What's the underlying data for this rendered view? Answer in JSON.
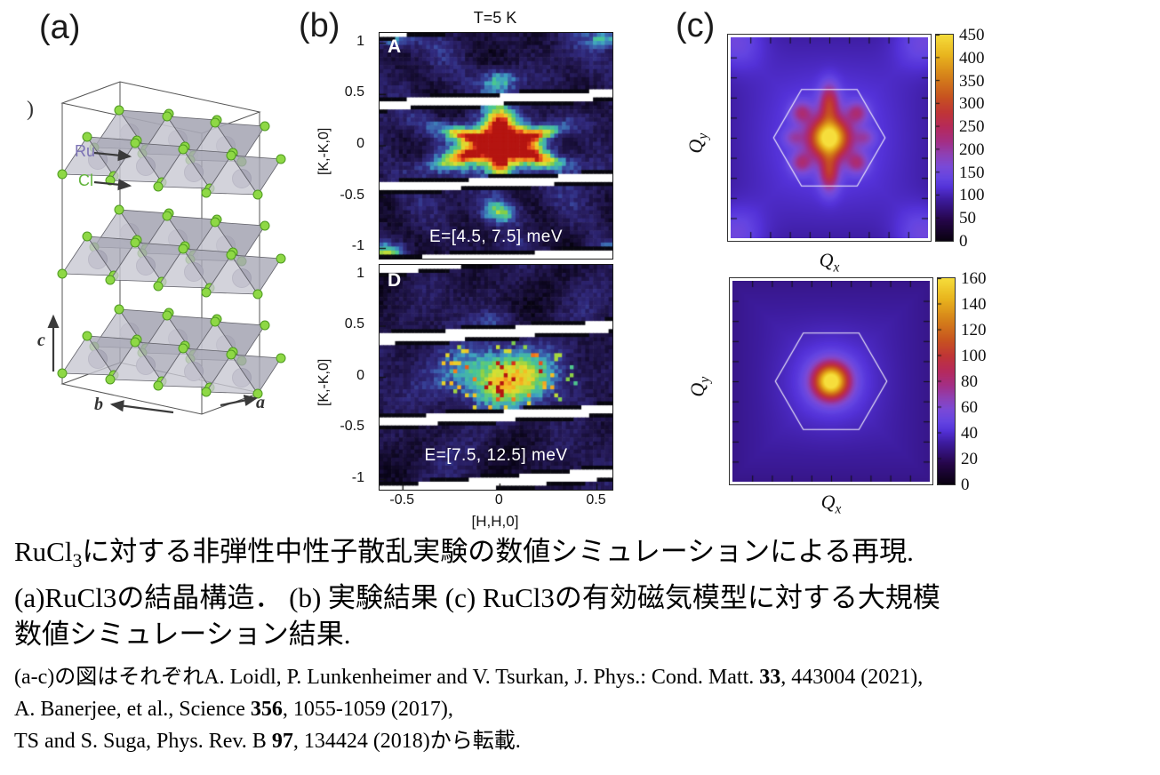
{
  "figure": {
    "panel_a": {
      "label": "(a)",
      "stray_paren": ")",
      "legend": {
        "ru": "Ru",
        "cl": "Cl"
      },
      "axes": {
        "a": "a",
        "b": "b",
        "c": "c"
      },
      "colors": {
        "ru_text": "#7b72b4",
        "cl_text": "#62b43c",
        "cl_sphere": "#8ed845",
        "ru_sphere": "#b6b0c4"
      }
    },
    "panel_b": {
      "label": "(b)",
      "title": "T=5 K",
      "ylabel": "[K,-K,0]",
      "xlabel": "[H,H,0]",
      "tag_top": "A",
      "tag_bottom": "D",
      "annotation_top": "E=[4.5, 7.5] meV",
      "annotation_bottom": "E=[7.5, 12.5] meV"
    },
    "panel_c": {
      "label": "(c)",
      "qx_segments": [
        {
          "text": "Q",
          "i": true
        },
        {
          "text": "x",
          "i": true,
          "sub": true
        }
      ],
      "qy_segments": [
        {
          "text": "Q",
          "i": true
        },
        {
          "text": "y",
          "i": true,
          "sub": true
        }
      ]
    }
  },
  "caption": {
    "lines": [
      {
        "segments": [
          {
            "text": "RuCl"
          },
          {
            "text": "3",
            "sub": true
          },
          {
            "text": "に対する非弾性中性子散乱実験の数値シミュレーションによる再現."
          }
        ]
      },
      {
        "segments": [
          {
            "text": "(a)RuCl3の結晶構造．  (b) 実験結果 (c) RuCl3の有効磁気模型に対する大規模"
          }
        ]
      },
      {
        "segments": [
          {
            "text": "数値シミュレーション結果."
          }
        ]
      },
      {
        "segments": [
          {
            "text": "(a-c)の図はそれぞれA. Loidl, P. Lunkenheimer and V. Tsurkan, J. Phys.: Cond. Matt. "
          },
          {
            "text": "33",
            "b": true
          },
          {
            "text": ", 443004 (2021),"
          }
        ]
      },
      {
        "segments": [
          {
            "text": "A. Banerjee, et al., Science "
          },
          {
            "text": "356",
            "b": true
          },
          {
            "text": ", 1055-1059 (2017),"
          }
        ]
      },
      {
        "segments": [
          {
            "text": "TS and S. Suga, Phys. Rev. B "
          },
          {
            "text": "97",
            "b": true
          },
          {
            "text": ", 134424 (2018)から転載."
          }
        ]
      }
    ]
  },
  "palettes": {
    "jet": [
      [
        0.0,
        "#070312"
      ],
      [
        0.1,
        "#160d33"
      ],
      [
        0.2,
        "#251a57"
      ],
      [
        0.3,
        "#312a7d"
      ],
      [
        0.38,
        "#3a4fa5"
      ],
      [
        0.46,
        "#3f9fc4"
      ],
      [
        0.54,
        "#49c795"
      ],
      [
        0.62,
        "#83cf4a"
      ],
      [
        0.7,
        "#d8e234"
      ],
      [
        0.78,
        "#f6bc24"
      ],
      [
        0.86,
        "#f2801d"
      ],
      [
        0.92,
        "#e0391f"
      ],
      [
        1.0,
        "#b51410"
      ]
    ],
    "pm3d": [
      [
        0.0,
        "#0a0210"
      ],
      [
        0.1,
        "#26064a"
      ],
      [
        0.2,
        "#3d1c9e"
      ],
      [
        0.26,
        "#5432d8"
      ],
      [
        0.3,
        "#6344e2"
      ],
      [
        0.36,
        "#7a4ad8"
      ],
      [
        0.42,
        "#8f41b4"
      ],
      [
        0.48,
        "#a42f86"
      ],
      [
        0.55,
        "#b62a5c"
      ],
      [
        0.62,
        "#c03538"
      ],
      [
        0.7,
        "#c85420"
      ],
      [
        0.8,
        "#d6831a"
      ],
      [
        0.9,
        "#e9b51e"
      ],
      [
        1.0,
        "#f6de3c"
      ]
    ]
  },
  "chart_data": [
    {
      "type": "heatmap",
      "panel": "b-top",
      "tag": "A",
      "title": "T=5 K",
      "annotation": "E=[4.5, 7.5] meV",
      "xlabel": "",
      "ylabel": "[K,-K,0]",
      "x_range": [
        -0.62,
        0.58
      ],
      "y_range": [
        -1.1,
        1.1
      ],
      "xticks": [],
      "yticks": [
        1,
        0.5,
        0,
        -0.5,
        -1
      ],
      "colormap": "jet",
      "pattern": "star",
      "seed": 7,
      "description": "six-pointed star of scattering intensity centered at (0,0), red core, arms at 30/90/150/210/270/330 deg, satellite spots at (0,±0.64)",
      "stripes": [
        {
          "k0": 0.4,
          "slope": 0.1,
          "hw": 0.04
        },
        {
          "k0": -0.41,
          "slope": 0.1,
          "hw": 0.038
        },
        {
          "k0": -1.14,
          "slope": 0.08,
          "hw": 0.045
        },
        {
          "k0": 1.09,
          "slope": 0.18,
          "hw": 0.03
        }
      ]
    },
    {
      "type": "heatmap",
      "panel": "b-bottom",
      "tag": "D",
      "title": "",
      "annotation": "E=[7.5, 12.5] meV",
      "xlabel": "[H,H,0]",
      "ylabel": "[K,-K,0]",
      "x_range": [
        -0.62,
        0.58
      ],
      "y_range": [
        -1.1,
        1.1
      ],
      "xticks": [
        -0.5,
        0,
        0.5
      ],
      "yticks": [
        1,
        0.5,
        0,
        -0.5,
        -1
      ],
      "colormap": "jet",
      "pattern": "blob",
      "seed": 23,
      "description": "broad diffuse blob centered at (0,0) with yellow-green speckle and cyan rim",
      "stripes": [
        {
          "k0": 0.37,
          "slope": 0.13,
          "hw": 0.045
        },
        {
          "k0": -0.44,
          "slope": 0.12,
          "hw": 0.042
        },
        {
          "k0": -1.12,
          "slope": 0.18,
          "hw": 0.05
        },
        {
          "k0": 1.05,
          "slope": 0.22,
          "hw": 0.045
        }
      ]
    },
    {
      "type": "heatmap",
      "panel": "c-top",
      "xlabel": "Qx",
      "ylabel": "Qy",
      "value_range": [
        0,
        450
      ],
      "colorbar_ticks": [
        0,
        50,
        100,
        150,
        200,
        250,
        300,
        350,
        400,
        450
      ],
      "colorbar_labels": [
        "450",
        "400",
        "350",
        "300",
        "250",
        "200",
        "150",
        "100",
        "50",
        "0"
      ],
      "colormap": "pm3d",
      "overlay": "hexagon-brillouin-zone",
      "background": 112,
      "vignette": 20,
      "gaussians": [
        {
          "x": 0,
          "y": 0,
          "sx": 0.34,
          "sy": 0.34,
          "amp": 345
        },
        {
          "x": 0,
          "y": 0,
          "sx": 1.0,
          "sy": 1.0,
          "amp": 28
        },
        {
          "x": 0,
          "y": 0.62,
          "sx": 0.17,
          "sy": 0.34,
          "amp": 150
        },
        {
          "x": 0,
          "y": -0.62,
          "sx": 0.17,
          "sy": 0.34,
          "amp": 150
        },
        {
          "x": 0.5,
          "y": 0.45,
          "sx": 0.19,
          "sy": 0.19,
          "amp": 95
        },
        {
          "x": -0.5,
          "y": 0.45,
          "sx": 0.19,
          "sy": 0.19,
          "amp": 95
        },
        {
          "x": 0.5,
          "y": -0.45,
          "sx": 0.19,
          "sy": 0.19,
          "amp": 95
        },
        {
          "x": -0.5,
          "y": -0.45,
          "sx": 0.19,
          "sy": 0.19,
          "amp": 95
        },
        {
          "x": 0.64,
          "y": 0,
          "sx": 0.18,
          "sy": 0.16,
          "amp": 60
        },
        {
          "x": -0.64,
          "y": 0,
          "sx": 0.18,
          "sy": 0.16,
          "amp": 60
        },
        {
          "x": 1.7,
          "y": 1.75,
          "sx": 0.5,
          "sy": 0.5,
          "amp": 55
        },
        {
          "x": -1.7,
          "y": 1.75,
          "sx": 0.5,
          "sy": 0.5,
          "amp": 55
        },
        {
          "x": 1.7,
          "y": -1.75,
          "sx": 0.5,
          "sy": 0.5,
          "amp": 55
        },
        {
          "x": -1.7,
          "y": -1.75,
          "sx": 0.5,
          "sy": 0.5,
          "amp": 55
        }
      ]
    },
    {
      "type": "heatmap",
      "panel": "c-bottom",
      "xlabel": "Qx",
      "ylabel": "Qy",
      "value_range": [
        0,
        160
      ],
      "colorbar_ticks": [
        0,
        20,
        40,
        60,
        80,
        100,
        120,
        140,
        160
      ],
      "colorbar_labels": [
        "160",
        "140",
        "120",
        "100",
        "80",
        "60",
        "40",
        "20",
        "0"
      ],
      "colormap": "pm3d",
      "overlay": "hexagon-brillouin-zone",
      "background": 36,
      "vignette": 8,
      "gaussians": [
        {
          "x": 0,
          "y": 0,
          "sx": 0.3,
          "sy": 0.3,
          "amp": 126
        },
        {
          "x": 0,
          "y": 0,
          "sx": 0.7,
          "sy": 0.7,
          "amp": 16
        }
      ]
    }
  ]
}
